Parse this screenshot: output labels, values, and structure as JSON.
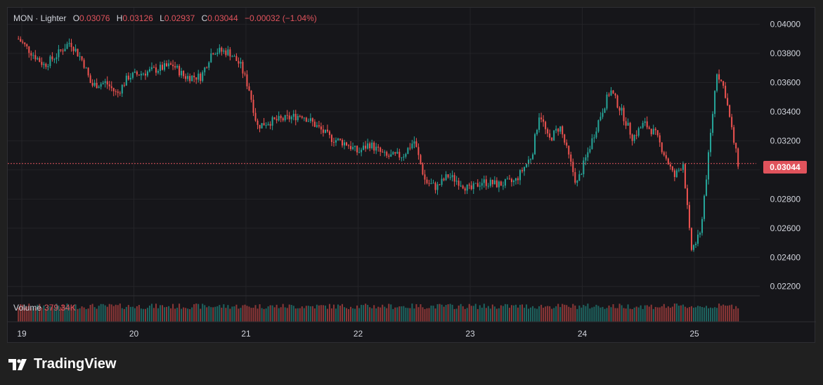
{
  "legend": {
    "symbol": "MON · Lighter",
    "o_label": "O",
    "open": "0.03076",
    "h_label": "H",
    "high": "0.03126",
    "l_label": "L",
    "low": "0.02937",
    "c_label": "C",
    "close": "0.03044",
    "change": "−0.00032 (−1.04%)"
  },
  "volume": {
    "label": "Volume",
    "value": "379.34K"
  },
  "price_tag": "0.03044",
  "brand": {
    "name": "TradingView",
    "logo_icon": "tradingview-logo-icon"
  },
  "colors": {
    "up": "#26a69a",
    "down": "#ef5350",
    "background": "#16161a",
    "accent": "#e0535c"
  },
  "chart_data": {
    "type": "candlestick",
    "y_ticks": [
      "0.04000",
      "0.03800",
      "0.03600",
      "0.03400",
      "0.03200",
      "0.03000",
      "0.02800",
      "0.02600",
      "0.02400",
      "0.02200"
    ],
    "ylim": [
      0.0216,
      0.0408
    ],
    "x_ticks": [
      "19",
      "20",
      "21",
      "22",
      "23",
      "24",
      "25"
    ],
    "current_price": 0.03044,
    "grid": true,
    "close_path": [
      [
        18.97,
        0.039
      ],
      [
        19.08,
        0.0381
      ],
      [
        19.2,
        0.0372
      ],
      [
        19.3,
        0.0378
      ],
      [
        19.43,
        0.0388
      ],
      [
        19.55,
        0.0374
      ],
      [
        19.62,
        0.0358
      ],
      [
        19.75,
        0.036
      ],
      [
        19.85,
        0.0352
      ],
      [
        19.95,
        0.0364
      ],
      [
        20.1,
        0.0367
      ],
      [
        20.25,
        0.037
      ],
      [
        20.35,
        0.0372
      ],
      [
        20.45,
        0.0364
      ],
      [
        20.6,
        0.0364
      ],
      [
        20.7,
        0.0382
      ],
      [
        20.85,
        0.0381
      ],
      [
        20.95,
        0.0372
      ],
      [
        21.03,
        0.0355
      ],
      [
        21.1,
        0.033
      ],
      [
        21.2,
        0.0333
      ],
      [
        21.35,
        0.0335
      ],
      [
        21.5,
        0.0338
      ],
      [
        21.6,
        0.0332
      ],
      [
        21.75,
        0.0322
      ],
      [
        21.9,
        0.0318
      ],
      [
        22.0,
        0.0312
      ],
      [
        22.1,
        0.0318
      ],
      [
        22.25,
        0.0309
      ],
      [
        22.4,
        0.031
      ],
      [
        22.5,
        0.032
      ],
      [
        22.6,
        0.0292
      ],
      [
        22.7,
        0.0288
      ],
      [
        22.8,
        0.0296
      ],
      [
        22.9,
        0.0292
      ],
      [
        23.0,
        0.0286
      ],
      [
        23.1,
        0.0292
      ],
      [
        23.25,
        0.029
      ],
      [
        23.4,
        0.0292
      ],
      [
        23.55,
        0.031
      ],
      [
        23.62,
        0.034
      ],
      [
        23.7,
        0.032
      ],
      [
        23.8,
        0.033
      ],
      [
        23.95,
        0.029
      ],
      [
        24.05,
        0.0312
      ],
      [
        24.15,
        0.0335
      ],
      [
        24.25,
        0.0355
      ],
      [
        24.35,
        0.034
      ],
      [
        24.45,
        0.0322
      ],
      [
        24.55,
        0.0332
      ],
      [
        24.65,
        0.0325
      ],
      [
        24.75,
        0.0308
      ],
      [
        24.82,
        0.0295
      ],
      [
        24.9,
        0.0305
      ],
      [
        24.97,
        0.0245
      ],
      [
        25.05,
        0.0255
      ],
      [
        25.12,
        0.0305
      ],
      [
        25.2,
        0.0368
      ],
      [
        25.27,
        0.0355
      ],
      [
        25.35,
        0.032
      ],
      [
        25.39,
        0.03044
      ]
    ]
  }
}
